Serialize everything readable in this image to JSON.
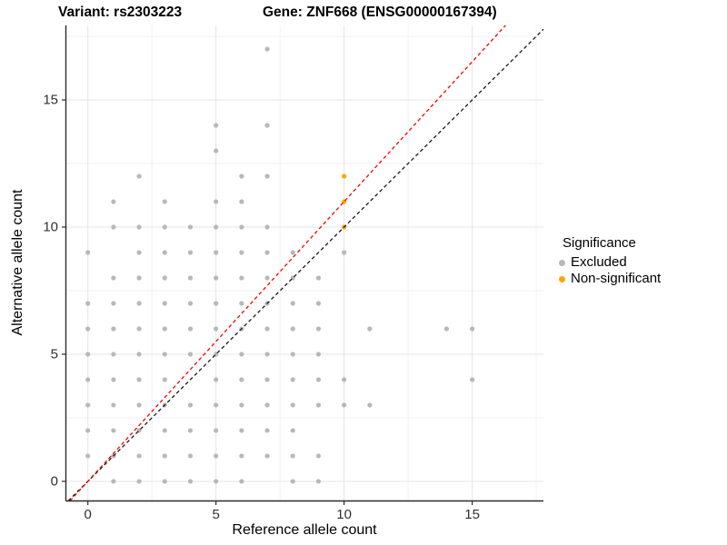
{
  "titles": {
    "left": "Variant: rs2303223",
    "right": "Gene: ZNF668 (ENSG00000167394)"
  },
  "legend": {
    "title": "Significance",
    "items": [
      {
        "label": "Excluded",
        "color": "#B8B8B8"
      },
      {
        "label": "Non-significant",
        "color": "#FFA500"
      }
    ]
  },
  "chart_data": {
    "type": "scatter",
    "title": "",
    "xlabel": "Reference allele count",
    "ylabel": "Alternative allele count",
    "xlim": [
      -0.84,
      17.78
    ],
    "ylim": [
      -0.77,
      17.93
    ],
    "x_ticks": [
      0,
      5,
      10,
      15
    ],
    "y_ticks": [
      0,
      5,
      10,
      15
    ],
    "x_minor_ticks": [
      2.5,
      7.5,
      12.5,
      17.5
    ],
    "y_minor_ticks": [
      2.5,
      7.5,
      12.5,
      17.5
    ],
    "grid": true,
    "legend_position": "right",
    "colors": {
      "major_grid": "#E5E5E5",
      "minor_grid": "#F2F2F2",
      "axis_line": "#2B2B2B",
      "identity_line": "#1A1A1A",
      "fit_line": "#FF0000"
    },
    "series": [
      {
        "name": "Excluded",
        "color": "#B8B8B8",
        "points": [
          [
            0,
            1
          ],
          [
            0,
            2
          ],
          [
            0,
            3
          ],
          [
            0,
            4
          ],
          [
            0,
            5
          ],
          [
            0,
            6
          ],
          [
            0,
            7
          ],
          [
            0,
            9
          ],
          [
            1,
            0
          ],
          [
            1,
            1
          ],
          [
            1,
            2
          ],
          [
            1,
            3
          ],
          [
            1,
            4
          ],
          [
            1,
            5
          ],
          [
            1,
            6
          ],
          [
            1,
            7
          ],
          [
            1,
            8
          ],
          [
            1,
            10
          ],
          [
            1,
            11
          ],
          [
            2,
            0
          ],
          [
            2,
            1
          ],
          [
            2,
            2
          ],
          [
            2,
            3
          ],
          [
            2,
            4
          ],
          [
            2,
            5
          ],
          [
            2,
            6
          ],
          [
            2,
            7
          ],
          [
            2,
            8
          ],
          [
            2,
            9
          ],
          [
            2,
            10
          ],
          [
            2,
            12
          ],
          [
            3,
            0
          ],
          [
            3,
            1
          ],
          [
            3,
            2
          ],
          [
            3,
            3
          ],
          [
            3,
            4
          ],
          [
            3,
            5
          ],
          [
            3,
            6
          ],
          [
            3,
            7
          ],
          [
            3,
            8
          ],
          [
            3,
            9
          ],
          [
            3,
            10
          ],
          [
            3,
            11
          ],
          [
            4,
            0
          ],
          [
            4,
            1
          ],
          [
            4,
            2
          ],
          [
            4,
            3
          ],
          [
            4,
            5
          ],
          [
            4,
            6
          ],
          [
            4,
            7
          ],
          [
            4,
            8
          ],
          [
            4,
            9
          ],
          [
            4,
            10
          ],
          [
            5,
            0
          ],
          [
            5,
            1
          ],
          [
            5,
            2
          ],
          [
            5,
            3
          ],
          [
            5,
            4
          ],
          [
            5,
            5
          ],
          [
            5,
            6
          ],
          [
            5,
            7
          ],
          [
            5,
            8
          ],
          [
            5,
            9
          ],
          [
            5,
            10
          ],
          [
            5,
            11
          ],
          [
            5,
            13
          ],
          [
            5,
            14
          ],
          [
            6,
            0
          ],
          [
            6,
            1
          ],
          [
            6,
            2
          ],
          [
            6,
            3
          ],
          [
            6,
            4
          ],
          [
            6,
            5
          ],
          [
            6,
            6
          ],
          [
            6,
            7
          ],
          [
            6,
            8
          ],
          [
            6,
            9
          ],
          [
            6,
            10
          ],
          [
            6,
            11
          ],
          [
            6,
            12
          ],
          [
            7,
            1
          ],
          [
            7,
            2
          ],
          [
            7,
            3
          ],
          [
            7,
            4
          ],
          [
            7,
            5
          ],
          [
            7,
            6
          ],
          [
            7,
            7
          ],
          [
            7,
            8
          ],
          [
            7,
            9
          ],
          [
            7,
            10
          ],
          [
            7,
            12
          ],
          [
            7,
            14
          ],
          [
            7,
            17
          ],
          [
            8,
            0
          ],
          [
            8,
            1
          ],
          [
            8,
            2
          ],
          [
            8,
            3
          ],
          [
            8,
            4
          ],
          [
            8,
            5
          ],
          [
            8,
            6
          ],
          [
            8,
            7
          ],
          [
            8,
            8
          ],
          [
            8,
            9
          ],
          [
            9,
            0
          ],
          [
            9,
            1
          ],
          [
            9,
            3
          ],
          [
            9,
            4
          ],
          [
            9,
            5
          ],
          [
            9,
            6
          ],
          [
            9,
            7
          ],
          [
            9,
            8
          ],
          [
            10,
            3
          ],
          [
            10,
            4
          ],
          [
            10,
            9
          ],
          [
            11,
            3
          ],
          [
            11,
            6
          ],
          [
            14,
            6
          ],
          [
            15,
            4
          ],
          [
            15,
            6
          ]
        ]
      },
      {
        "name": "Non-significant",
        "color": "#FFA500",
        "points": [
          [
            10,
            10
          ],
          [
            10,
            11
          ],
          [
            10,
            12
          ]
        ]
      }
    ],
    "lines": [
      {
        "name": "identity-line",
        "style": "dashed",
        "color": "#1A1A1A",
        "from": [
          -0.77,
          -0.77
        ],
        "to": [
          17.78,
          17.78
        ]
      },
      {
        "name": "fit-line",
        "style": "dashed",
        "color": "#FF0000",
        "from": [
          -0.7,
          -0.77
        ],
        "to": [
          16.3,
          17.93
        ]
      }
    ]
  }
}
